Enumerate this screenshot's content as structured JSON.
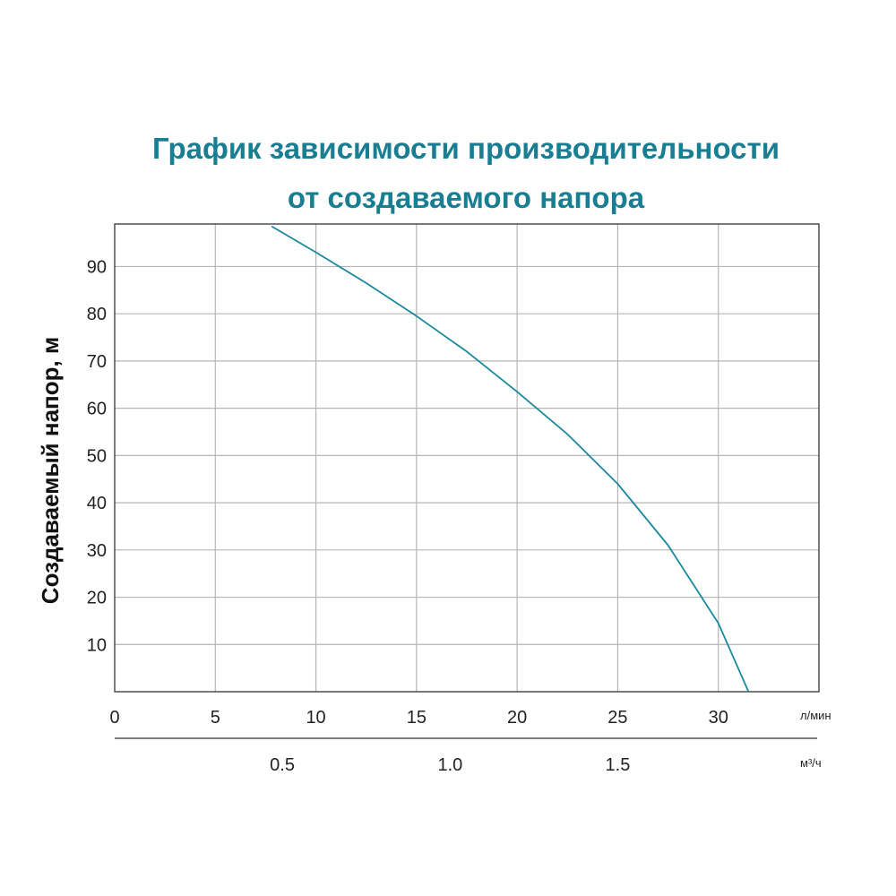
{
  "title_line1": "График зависимости производительности",
  "title_line2": "от создаваемого напора",
  "chart_data": {
    "type": "line",
    "title": "График зависимости производительности от создаваемого напора",
    "ylabel": "Создаваемый напор, м",
    "x_unit": "л/мин",
    "x2_unit": "м³/ч",
    "x_ticks": [
      0,
      5,
      10,
      15,
      20,
      25,
      30
    ],
    "x2_ticks": [
      "0.5",
      "1.0",
      "1.5"
    ],
    "x2_tick_values_lmin": [
      8.33,
      16.67,
      25.0
    ],
    "y_ticks": [
      10,
      20,
      30,
      40,
      50,
      60,
      70,
      80,
      90
    ],
    "xlim": [
      0,
      35
    ],
    "ylim": [
      0,
      99
    ],
    "grid": true,
    "series": [
      {
        "color": "#1b8a9a",
        "x": [
          7.8,
          10,
          12.5,
          15,
          17.5,
          20,
          22.5,
          25,
          27.5,
          30,
          31.5
        ],
        "y": [
          98.5,
          93,
          86.5,
          79.5,
          72,
          63.5,
          54.5,
          44,
          31,
          14.5,
          0
        ]
      }
    ]
  }
}
